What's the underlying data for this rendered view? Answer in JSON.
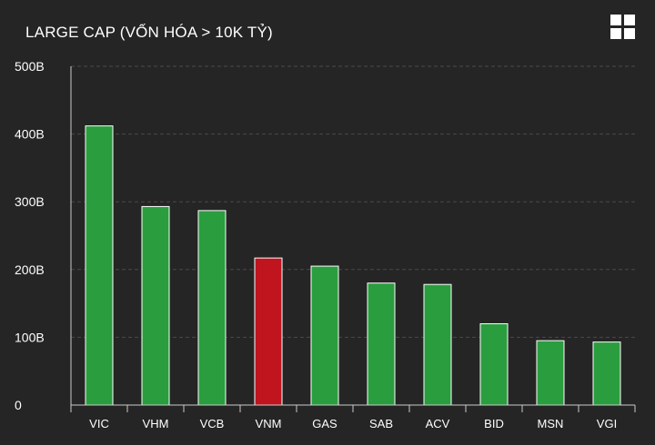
{
  "header": {
    "title": "LARGE CAP (VỐN HÓA > 10K TỶ)",
    "menu_icon": "grid-menu-icon"
  },
  "chart_data": {
    "type": "bar",
    "title": "LARGE CAP (VỐN HÓA > 10K TỶ)",
    "xlabel": "",
    "ylabel": "",
    "categories": [
      "VIC",
      "VHM",
      "VCB",
      "VNM",
      "GAS",
      "SAB",
      "ACV",
      "BID",
      "MSN",
      "VGI"
    ],
    "values": [
      412,
      293,
      287,
      217,
      205,
      180,
      178,
      120,
      95,
      93
    ],
    "bar_status": [
      "up",
      "up",
      "up",
      "down",
      "up",
      "up",
      "up",
      "up",
      "up",
      "up"
    ],
    "ylim": [
      0,
      500
    ],
    "y_ticks": [
      0,
      100,
      200,
      300,
      400,
      500
    ],
    "y_tick_labels": [
      "0",
      "100B",
      "200B",
      "300B",
      "400B",
      "500B"
    ],
    "grid": true,
    "legend": "none",
    "colors": {
      "up": "#2a9d3f",
      "down": "#c0141f",
      "bar_border": "#ffffff",
      "grid": "#4a4a4a",
      "axis": "#cccccc",
      "background": "#252525"
    }
  }
}
